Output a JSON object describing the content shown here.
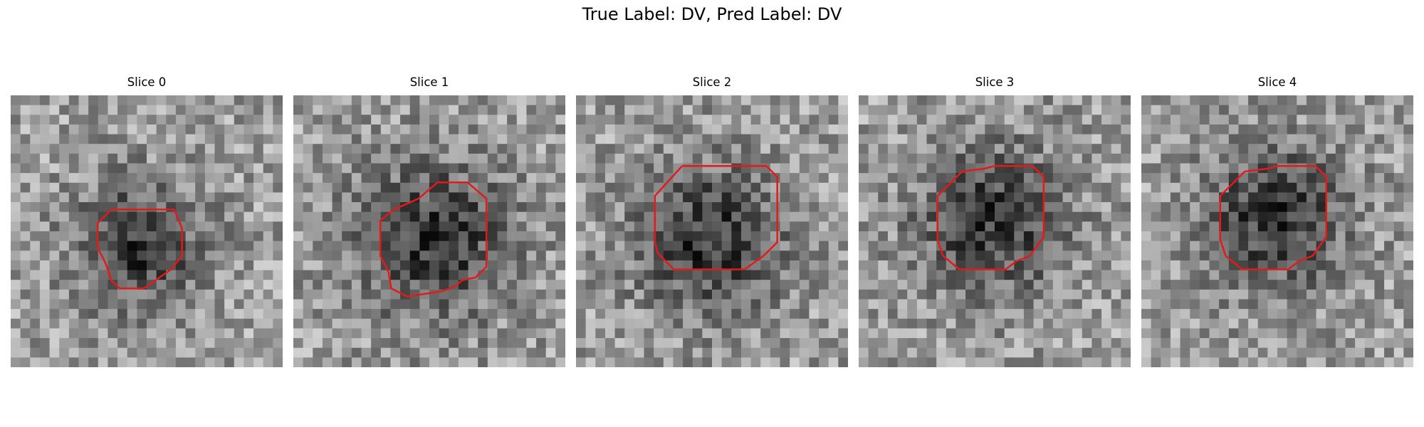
{
  "figure": {
    "title": "True Label: DV, Pred Label: DV"
  },
  "panels": [
    {
      "title": "Slice 0",
      "seed": 11,
      "blob": [
        0.47,
        0.55,
        0.22
      ],
      "outline": [
        [
          0.37,
          0.42
        ],
        [
          0.6,
          0.42
        ],
        [
          0.61,
          0.44
        ],
        [
          0.63,
          0.49
        ],
        [
          0.63,
          0.59
        ],
        [
          0.59,
          0.64
        ],
        [
          0.49,
          0.71
        ],
        [
          0.4,
          0.71
        ],
        [
          0.37,
          0.68
        ],
        [
          0.36,
          0.65
        ],
        [
          0.35,
          0.62
        ],
        [
          0.32,
          0.56
        ],
        [
          0.32,
          0.47
        ],
        [
          0.37,
          0.42
        ]
      ]
    },
    {
      "title": "Slice 1",
      "seed": 23,
      "blob": [
        0.52,
        0.53,
        0.27
      ],
      "outline": [
        [
          0.53,
          0.32
        ],
        [
          0.64,
          0.32
        ],
        [
          0.71,
          0.38
        ],
        [
          0.71,
          0.63
        ],
        [
          0.67,
          0.67
        ],
        [
          0.62,
          0.68
        ],
        [
          0.6,
          0.7
        ],
        [
          0.55,
          0.72
        ],
        [
          0.42,
          0.74
        ],
        [
          0.36,
          0.71
        ],
        [
          0.35,
          0.65
        ],
        [
          0.32,
          0.59
        ],
        [
          0.32,
          0.46
        ],
        [
          0.37,
          0.42
        ],
        [
          0.46,
          0.38
        ],
        [
          0.53,
          0.32
        ]
      ]
    },
    {
      "title": "Slice 2",
      "seed": 37,
      "blob": [
        0.49,
        0.53,
        0.26
      ],
      "outline": [
        [
          0.39,
          0.26
        ],
        [
          0.7,
          0.26
        ],
        [
          0.74,
          0.3
        ],
        [
          0.74,
          0.54
        ],
        [
          0.69,
          0.59
        ],
        [
          0.62,
          0.64
        ],
        [
          0.36,
          0.64
        ],
        [
          0.3,
          0.58
        ],
        [
          0.29,
          0.54
        ],
        [
          0.29,
          0.37
        ],
        [
          0.39,
          0.26
        ]
      ]
    },
    {
      "title": "Slice 3",
      "seed": 41,
      "blob": [
        0.49,
        0.46,
        0.26
      ],
      "outline": [
        [
          0.38,
          0.28
        ],
        [
          0.46,
          0.27
        ],
        [
          0.5,
          0.26
        ],
        [
          0.64,
          0.26
        ],
        [
          0.68,
          0.3
        ],
        [
          0.68,
          0.52
        ],
        [
          0.63,
          0.59
        ],
        [
          0.58,
          0.61
        ],
        [
          0.54,
          0.64
        ],
        [
          0.37,
          0.64
        ],
        [
          0.31,
          0.59
        ],
        [
          0.29,
          0.53
        ],
        [
          0.29,
          0.37
        ],
        [
          0.38,
          0.28
        ]
      ]
    },
    {
      "title": "Slice 4",
      "seed": 53,
      "blob": [
        0.49,
        0.45,
        0.25
      ],
      "outline": [
        [
          0.38,
          0.28
        ],
        [
          0.46,
          0.27
        ],
        [
          0.5,
          0.26
        ],
        [
          0.64,
          0.26
        ],
        [
          0.68,
          0.3
        ],
        [
          0.68,
          0.52
        ],
        [
          0.63,
          0.59
        ],
        [
          0.58,
          0.61
        ],
        [
          0.54,
          0.64
        ],
        [
          0.37,
          0.64
        ],
        [
          0.31,
          0.59
        ],
        [
          0.29,
          0.53
        ],
        [
          0.29,
          0.37
        ],
        [
          0.38,
          0.28
        ]
      ]
    }
  ],
  "colors": {
    "outline": "#e31a1c"
  }
}
